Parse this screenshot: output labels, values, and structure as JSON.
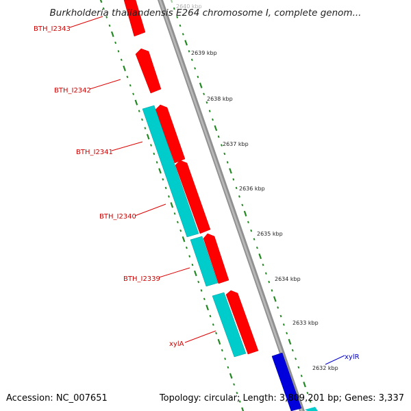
{
  "title": "Burkholderia thailandensis E264 chromosome I, complete genom...",
  "footer": {
    "accession": "Accession: NC_007651",
    "summary": "Topology: circular; Length: 3,809,201 bp; Genes: 3,337"
  },
  "colors": {
    "forward_cds": "#ff0000",
    "reverse_cds_light": "#00cccc",
    "blue_feature": "#0000cc",
    "backbone": "#888888",
    "tick": "#228822",
    "label_red": "#cc0000",
    "label_blue": "#0000cc"
  },
  "gene_labels": [
    {
      "text": "BTH_I2343",
      "color": "#cc0000"
    },
    {
      "text": "BTH_I2342",
      "color": "#cc0000"
    },
    {
      "text": "BTH_I2341",
      "color": "#cc0000"
    },
    {
      "text": "BTH_I2340",
      "color": "#cc0000"
    },
    {
      "text": "BTH_I2339",
      "color": "#cc0000"
    },
    {
      "text": "xylA",
      "color": "#cc0000"
    },
    {
      "text": "xylR",
      "color": "#0000cc"
    }
  ],
  "tick_labels": [
    "2640 kbp",
    "2639 kbp",
    "2638 kbp",
    "2637 kbp",
    "2636 kbp",
    "2635 kbp",
    "2634 kbp",
    "2633 kbp",
    "2632 kbp"
  ]
}
